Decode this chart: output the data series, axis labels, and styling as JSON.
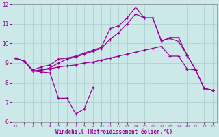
{
  "background_color": "#cce8e8",
  "grid_color": "#aacccc",
  "line_color": "#990099",
  "xlabel": "Windchill (Refroidissement éolien,°C)",
  "xlim": [
    -0.5,
    23.5
  ],
  "ylim": [
    6,
    12
  ],
  "xticks": [
    0,
    1,
    2,
    3,
    4,
    5,
    6,
    7,
    8,
    9,
    10,
    11,
    12,
    13,
    14,
    15,
    16,
    17,
    18,
    19,
    20,
    21,
    22,
    23
  ],
  "yticks": [
    6,
    7,
    8,
    9,
    10,
    11,
    12
  ],
  "line1_x": [
    0,
    1,
    2,
    3,
    4,
    5,
    6,
    7,
    8,
    9
  ],
  "line1_y": [
    9.25,
    9.1,
    8.6,
    8.55,
    8.5,
    7.2,
    7.2,
    6.4,
    6.65,
    7.75
  ],
  "line2_x": [
    0,
    1,
    2,
    3,
    4,
    5,
    6,
    7,
    8,
    9,
    10,
    11,
    12,
    13,
    14,
    15,
    16,
    17,
    18,
    19,
    20,
    21,
    22,
    23
  ],
  "line2_y": [
    9.25,
    9.1,
    8.6,
    8.65,
    8.7,
    8.8,
    8.85,
    8.9,
    9.0,
    9.05,
    9.15,
    9.25,
    9.35,
    9.45,
    9.55,
    9.65,
    9.75,
    9.85,
    9.35,
    9.35,
    8.7,
    8.65,
    7.7,
    7.6
  ],
  "line3_x": [
    0,
    1,
    2,
    3,
    4,
    5,
    6,
    7,
    8,
    9,
    10,
    11,
    12,
    13,
    14,
    15,
    16,
    17,
    18,
    19,
    20,
    21,
    22,
    23
  ],
  "line3_y": [
    9.25,
    9.1,
    8.65,
    8.8,
    8.9,
    9.2,
    9.25,
    9.35,
    9.5,
    9.65,
    9.8,
    10.75,
    10.9,
    11.3,
    11.85,
    11.3,
    11.3,
    10.1,
    10.3,
    10.3,
    9.4,
    8.65,
    7.7,
    7.6
  ],
  "line4_x": [
    0,
    1,
    2,
    3,
    4,
    5,
    6,
    7,
    8,
    9,
    10,
    11,
    12,
    13,
    14,
    15,
    16,
    17,
    18,
    19,
    20,
    21,
    22,
    23
  ],
  "line4_y": [
    9.25,
    9.1,
    8.6,
    8.65,
    8.75,
    9.0,
    9.2,
    9.3,
    9.45,
    9.6,
    9.75,
    10.2,
    10.55,
    11.0,
    11.5,
    11.3,
    11.3,
    10.15,
    10.25,
    10.1,
    9.4,
    8.65,
    7.7,
    7.6
  ]
}
